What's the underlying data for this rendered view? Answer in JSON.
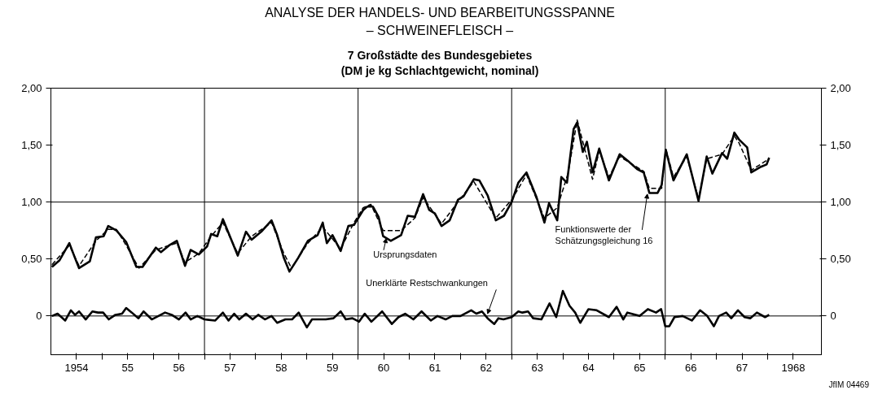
{
  "chart_data": {
    "type": "line",
    "title": "ANALYSE DER HANDELS- UND BEARBEITUNGSSPANNE\n– SCHWEINEFLEISCH –",
    "subtitle": "7 Großstädte des Bundesgebietes\n(DM je kg Schlachtgewicht, nominal)",
    "xlim": [
      1953.5,
      1968.55
    ],
    "xticks": [
      1954,
      {
        "value": 1954.5,
        "label": null
      },
      {
        "value": 1955,
        "label": "55"
      },
      {
        "value": 1955.5,
        "label": null
      },
      {
        "value": 1956,
        "label": "56"
      },
      {
        "value": 1956.5,
        "label": null
      },
      {
        "value": 1957,
        "label": "57"
      },
      {
        "value": 1957.5,
        "label": null
      },
      {
        "value": 1958,
        "label": "58"
      },
      {
        "value": 1958.5,
        "label": null
      },
      {
        "value": 1959,
        "label": "59"
      },
      {
        "value": 1959.5,
        "label": null
      },
      {
        "value": 1960,
        "label": "60"
      },
      {
        "value": 1960.5,
        "label": null
      },
      {
        "value": 1961,
        "label": "61"
      },
      {
        "value": 1961.5,
        "label": null
      },
      {
        "value": 1962,
        "label": "62"
      },
      {
        "value": 1962.5,
        "label": null
      },
      {
        "value": 1963,
        "label": "63"
      },
      {
        "value": 1963.5,
        "label": null
      },
      {
        "value": 1964,
        "label": "64"
      },
      {
        "value": 1964.5,
        "label": null
      },
      {
        "value": 1965,
        "label": "65"
      },
      {
        "value": 1965.5,
        "label": null
      },
      {
        "value": 1966,
        "label": "66"
      },
      {
        "value": 1966.5,
        "label": null
      },
      {
        "value": 1967,
        "label": "67"
      },
      {
        "value": 1967.5,
        "label": null
      },
      1968
    ],
    "ylim": [
      -0.34,
      2.0
    ],
    "yticks": [
      0,
      {
        "value": 0.5,
        "label": "0,50"
      },
      {
        "value": 1,
        "label": "1,00"
      },
      {
        "value": 1.5,
        "label": "1,50"
      },
      {
        "value": 2,
        "label": "2,00"
      }
    ],
    "y2lim": [
      -0.34,
      2.0
    ],
    "y2ticks": [
      0,
      {
        "value": 0.5,
        "label": "0,50"
      },
      {
        "value": 1,
        "label": "1,00"
      },
      {
        "value": 1.5,
        "label": "1,50"
      },
      {
        "value": 2,
        "label": "2,00"
      }
    ],
    "grid": false,
    "marker": "none",
    "series": [
      {
        "color": "#000000",
        "line_style": "solid",
        "x": [
          1953.52,
          1953.67,
          1953.86,
          1953.97,
          1954.05,
          1954.26,
          1954.38,
          1954.53,
          1954.62,
          1954.78,
          1954.97,
          1955.17,
          1955.29,
          1955.55,
          1955.65,
          1955.81,
          1955.96,
          1956.12,
          1956.23,
          1956.39,
          1956.55,
          1956.63,
          1956.75,
          1956.86,
          1957.15,
          1957.31,
          1957.42,
          1957.61,
          1957.81,
          1957.92,
          1958.05,
          1958.16,
          1958.33,
          1958.52,
          1958.71,
          1958.81,
          1958.89,
          1959.0,
          1959.16,
          1959.31,
          1959.42,
          1959.6,
          1959.68,
          1959.79,
          1959.9,
          1959.99,
          1960.14,
          1960.34,
          1960.47,
          1960.61,
          1960.77,
          1960.89,
          1961.0,
          1961.13,
          1961.29,
          1961.45,
          1961.56,
          1961.76,
          1961.87,
          1962.03,
          1962.19,
          1962.35,
          1962.5,
          1962.63,
          1962.79,
          1962.98,
          1963.14,
          1963.23,
          1963.39,
          1963.47,
          1963.58,
          1963.71,
          1963.78,
          1963.89,
          1963.97,
          1964.08,
          1964.21,
          1964.4,
          1964.61,
          1964.8,
          1964.95,
          1965.08,
          1965.19,
          1965.35,
          1965.43,
          1965.51,
          1965.66,
          1965.92,
          1966.15,
          1966.31,
          1966.42,
          1966.61,
          1966.71,
          1966.85,
          1966.94,
          1967.1,
          1967.18,
          1967.37,
          1967.48,
          1967.53
        ],
        "values": [
          0.43,
          0.49,
          0.64,
          0.51,
          0.42,
          0.48,
          0.69,
          0.7,
          0.79,
          0.75,
          0.65,
          0.43,
          0.43,
          0.6,
          0.56,
          0.62,
          0.66,
          0.44,
          0.58,
          0.54,
          0.61,
          0.72,
          0.7,
          0.85,
          0.53,
          0.74,
          0.67,
          0.74,
          0.84,
          0.71,
          0.51,
          0.39,
          0.51,
          0.66,
          0.71,
          0.82,
          0.64,
          0.71,
          0.57,
          0.79,
          0.8,
          0.93,
          0.96,
          0.96,
          0.87,
          0.7,
          0.66,
          0.71,
          0.88,
          0.87,
          1.07,
          0.93,
          0.9,
          0.79,
          0.84,
          1.02,
          1.05,
          1.2,
          1.19,
          1.06,
          0.84,
          0.88,
          1.0,
          1.17,
          1.26,
          1.05,
          0.82,
          0.99,
          0.84,
          1.22,
          1.17,
          1.64,
          1.7,
          1.44,
          1.53,
          1.26,
          1.47,
          1.19,
          1.42,
          1.35,
          1.29,
          1.26,
          1.08,
          1.08,
          1.15,
          1.46,
          1.19,
          1.42,
          1.01,
          1.4,
          1.25,
          1.43,
          1.38,
          1.61,
          1.55,
          1.48,
          1.26,
          1.31,
          1.33,
          1.39
        ]
      },
      {
        "color": "#000000",
        "line_style": "dashed",
        "x": [
          1953.52,
          1953.86,
          1954.05,
          1954.38,
          1954.62,
          1954.78,
          1954.97,
          1955.22,
          1955.55,
          1955.81,
          1955.96,
          1956.12,
          1956.39,
          1956.63,
          1956.86,
          1957.15,
          1957.42,
          1957.81,
          1958.05,
          1958.2,
          1958.52,
          1958.81,
          1959.16,
          1959.42,
          1959.6,
          1959.75,
          1959.99,
          1960.34,
          1960.61,
          1960.77,
          1961.13,
          1961.45,
          1961.76,
          1962.19,
          1962.5,
          1962.79,
          1963.14,
          1963.39,
          1963.6,
          1963.78,
          1964.08,
          1964.21,
          1964.4,
          1964.61,
          1965.08,
          1965.19,
          1965.43,
          1965.51,
          1965.66,
          1965.92,
          1966.15,
          1966.31,
          1966.61,
          1966.85,
          1966.94,
          1967.18,
          1967.53
        ],
        "values": [
          0.45,
          0.62,
          0.44,
          0.66,
          0.76,
          0.76,
          0.62,
          0.42,
          0.58,
          0.62,
          0.64,
          0.47,
          0.55,
          0.7,
          0.82,
          0.55,
          0.7,
          0.82,
          0.55,
          0.42,
          0.64,
          0.78,
          0.59,
          0.82,
          0.95,
          0.98,
          0.75,
          0.75,
          0.86,
          1.04,
          0.81,
          1.0,
          1.18,
          0.86,
          1.02,
          1.24,
          0.86,
          0.95,
          1.25,
          1.72,
          1.2,
          1.45,
          1.22,
          1.4,
          1.27,
          1.12,
          1.12,
          1.47,
          1.22,
          1.4,
          1.03,
          1.38,
          1.42,
          1.58,
          1.52,
          1.28,
          1.38
        ]
      },
      {
        "color": "#000000",
        "line_style": "solid",
        "x": [
          1953.52,
          1953.63,
          1953.78,
          1953.89,
          1953.97,
          1954.05,
          1954.18,
          1954.31,
          1954.42,
          1954.52,
          1954.63,
          1954.76,
          1954.89,
          1954.97,
          1955.08,
          1955.21,
          1955.31,
          1955.47,
          1955.6,
          1955.73,
          1955.86,
          1956.0,
          1956.13,
          1956.23,
          1956.36,
          1956.5,
          1956.71,
          1956.86,
          1956.97,
          1957.08,
          1957.18,
          1957.31,
          1957.44,
          1957.55,
          1957.68,
          1957.81,
          1957.92,
          1958.08,
          1958.21,
          1958.34,
          1958.5,
          1958.6,
          1958.87,
          1959.02,
          1959.16,
          1959.26,
          1959.39,
          1959.52,
          1959.63,
          1959.76,
          1959.97,
          1960.16,
          1960.29,
          1960.42,
          1960.58,
          1960.74,
          1960.92,
          1961.05,
          1961.21,
          1961.34,
          1961.5,
          1961.71,
          1961.81,
          1961.92,
          1962.03,
          1962.16,
          1962.24,
          1962.34,
          1962.5,
          1962.63,
          1962.71,
          1962.82,
          1962.92,
          1963.08,
          1963.24,
          1963.37,
          1963.5,
          1963.63,
          1963.74,
          1963.84,
          1964.0,
          1964.16,
          1964.4,
          1964.55,
          1964.68,
          1964.76,
          1965.0,
          1965.16,
          1965.32,
          1965.42,
          1965.5,
          1965.58,
          1965.68,
          1965.84,
          1966.02,
          1966.18,
          1966.32,
          1966.45,
          1966.55,
          1966.69,
          1966.79,
          1966.92,
          1967.05,
          1967.16,
          1967.29,
          1967.45,
          1967.53
        ],
        "values": [
          0,
          0.02,
          -0.04,
          0.05,
          0.01,
          0.04,
          -0.03,
          0.04,
          0.03,
          0.03,
          -0.03,
          0.01,
          0.02,
          0.07,
          0.03,
          -0.02,
          0.04,
          -0.03,
          0,
          0.03,
          0.01,
          -0.03,
          0.03,
          -0.03,
          0,
          -0.03,
          -0.04,
          0.03,
          -0.04,
          0.02,
          -0.03,
          0.02,
          -0.03,
          0.01,
          -0.03,
          0,
          -0.06,
          -0.03,
          -0.03,
          0.03,
          -0.1,
          -0.03,
          -0.03,
          -0.02,
          0.04,
          -0.03,
          -0.02,
          -0.05,
          0.02,
          -0.05,
          0.04,
          -0.07,
          -0.01,
          0.02,
          -0.03,
          0.04,
          -0.04,
          0,
          -0.03,
          0,
          0,
          0.05,
          0.02,
          0.04,
          -0.02,
          -0.07,
          -0.02,
          -0.03,
          -0.01,
          0.04,
          0.03,
          0.04,
          -0.02,
          -0.03,
          0.11,
          -0.01,
          0.22,
          0.09,
          0.03,
          -0.06,
          0.06,
          0.05,
          -0.01,
          0.08,
          -0.03,
          0.03,
          0,
          0.06,
          0.03,
          0.06,
          -0.09,
          -0.09,
          -0.01,
          0,
          -0.04,
          0.05,
          0,
          -0.09,
          0,
          0.03,
          -0.02,
          0.05,
          -0.01,
          -0.02,
          0.03,
          -0.01,
          0.01
        ]
      }
    ],
    "ref_lines": [
      {
        "axis": "y",
        "value": 1,
        "color": "#000000"
      },
      {
        "axis": "y",
        "value": 0,
        "color": "#000000"
      },
      {
        "axis": "x",
        "value": 1956.5,
        "color": "#000000"
      },
      {
        "axis": "x",
        "value": 1959.5,
        "color": "#000000"
      },
      {
        "axis": "x",
        "value": 1962.5,
        "color": "#000000"
      },
      {
        "axis": "x",
        "value": 1965.5,
        "color": "#000000"
      }
    ],
    "annotations": [
      {
        "text": "Ursprungsdaten",
        "x": 1960.05,
        "y": 0.68
      },
      {
        "text": "Funktionswerte der\nSchätzungsgleichung 16",
        "x": 1965.15,
        "y": 1.07
      },
      {
        "text": "Unerklärte Restschwankungen",
        "x": 1962.03,
        "y": 0.02
      },
      "JfIM 04469"
    ]
  }
}
